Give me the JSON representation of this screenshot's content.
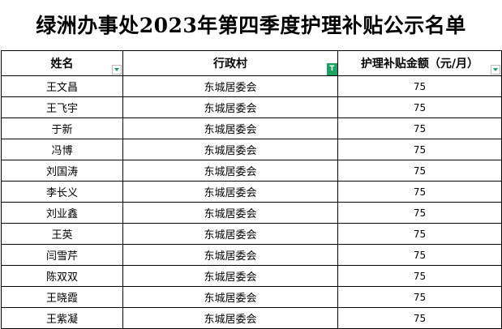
{
  "title": "绿洲办事处2023年第四季度护理补贴公示名单",
  "headers": [
    "姓名",
    "行政村",
    "护理补贴金额（元/月）"
  ],
  "filter_active_column": "行政村",
  "accent_color": "#1aa260",
  "rows": [
    [
      "王文昌",
      "东城居委会",
      "75"
    ],
    [
      "王飞宇",
      "东城居委会",
      "75"
    ],
    [
      "于新",
      "东城居委会",
      "75"
    ],
    [
      "冯博",
      "东城居委会",
      "75"
    ],
    [
      "刘国涛",
      "东城居委会",
      "75"
    ],
    [
      "李长义",
      "东城居委会",
      "75"
    ],
    [
      "刘业鑫",
      "东城居委会",
      "75"
    ],
    [
      "王英",
      "东城居委会",
      "75"
    ],
    [
      "闫雪芹",
      "东城居委会",
      "75"
    ],
    [
      "陈双双",
      "东城居委会",
      "75"
    ],
    [
      "王晓霞",
      "东城居委会",
      "75"
    ],
    [
      "王紫凝",
      "东城居委会",
      "75"
    ]
  ]
}
